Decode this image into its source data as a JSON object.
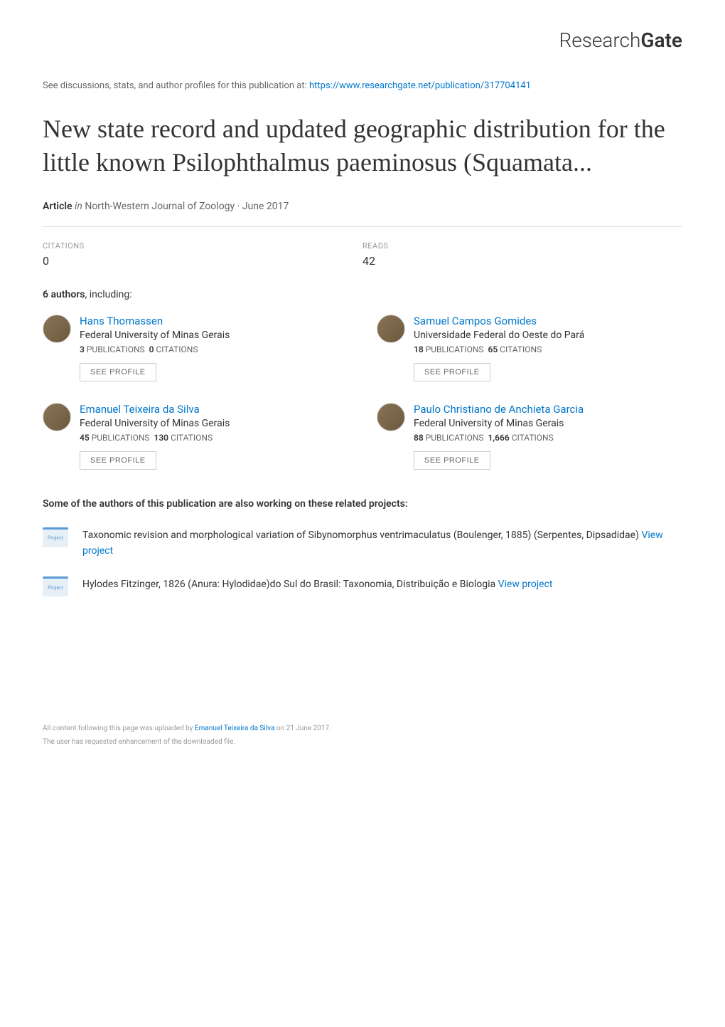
{
  "logo": {
    "prefix": "Research",
    "suffix": "Gate"
  },
  "discussions": {
    "prefix": "See discussions, stats, and author profiles for this publication at: ",
    "url": "https://www.researchgate.net/publication/317704141"
  },
  "title": "New state record and updated geographic distribution for the little known Psilophthalmus paeminosus (Squamata...",
  "article_meta": {
    "type_label": "Article",
    "in_label": "in",
    "journal": "North-Western Journal of Zoology · June 2017"
  },
  "stats": {
    "citations": {
      "label": "CITATIONS",
      "value": "0"
    },
    "reads": {
      "label": "READS",
      "value": "42"
    }
  },
  "authors_header": {
    "count": "6 authors",
    "suffix": ", including:"
  },
  "authors": [
    {
      "name": "Hans Thomassen",
      "affiliation": "Federal University of Minas Gerais",
      "publications": "3",
      "citations": "0",
      "pub_label": "PUBLICATIONS",
      "cit_label": "CITATIONS",
      "profile_btn": "SEE PROFILE"
    },
    {
      "name": "Samuel Campos Gomides",
      "affiliation": "Universidade Federal do Oeste do Pará",
      "publications": "18",
      "citations": "65",
      "pub_label": "PUBLICATIONS",
      "cit_label": "CITATIONS",
      "profile_btn": "SEE PROFILE"
    },
    {
      "name": "Emanuel Teixeira da Silva",
      "affiliation": "Federal University of Minas Gerais",
      "publications": "45",
      "citations": "130",
      "pub_label": "PUBLICATIONS",
      "cit_label": "CITATIONS",
      "profile_btn": "SEE PROFILE"
    },
    {
      "name": "Paulo Christiano de Anchieta Garcia",
      "affiliation": "Federal University of Minas Gerais",
      "publications": "88",
      "citations": "1,666",
      "pub_label": "PUBLICATIONS",
      "cit_label": "CITATIONS",
      "profile_btn": "SEE PROFILE"
    }
  ],
  "projects_header": "Some of the authors of this publication are also working on these related projects:",
  "projects": [
    {
      "icon_label": "Project",
      "text": "Taxonomic revision and morphological variation of Sibynomorphus ventrimaculatus (Boulenger, 1885) (Serpentes, Dipsadidae) ",
      "link_text": "View project"
    },
    {
      "icon_label": "Project",
      "text": "Hylodes Fitzinger, 1826 (Anura: Hylodidae)do Sul do Brasil: Taxonomia, Distribuição e Biologia ",
      "link_text": "View project"
    }
  ],
  "footer": {
    "uploaded_by_prefix": "All content following this page was uploaded by ",
    "uploaded_by_name": "Emanuel Teixeira da Silva",
    "uploaded_by_suffix": " on 21 June 2017.",
    "enhancement": "The user has requested enhancement of the downloaded file."
  },
  "colors": {
    "link": "#0077cc",
    "text_primary": "#333333",
    "text_secondary": "#666666",
    "text_muted": "#999999",
    "border": "#e0e0e0",
    "project_icon_bg": "#e8f0f7",
    "project_icon_border": "#5a9bd4"
  }
}
